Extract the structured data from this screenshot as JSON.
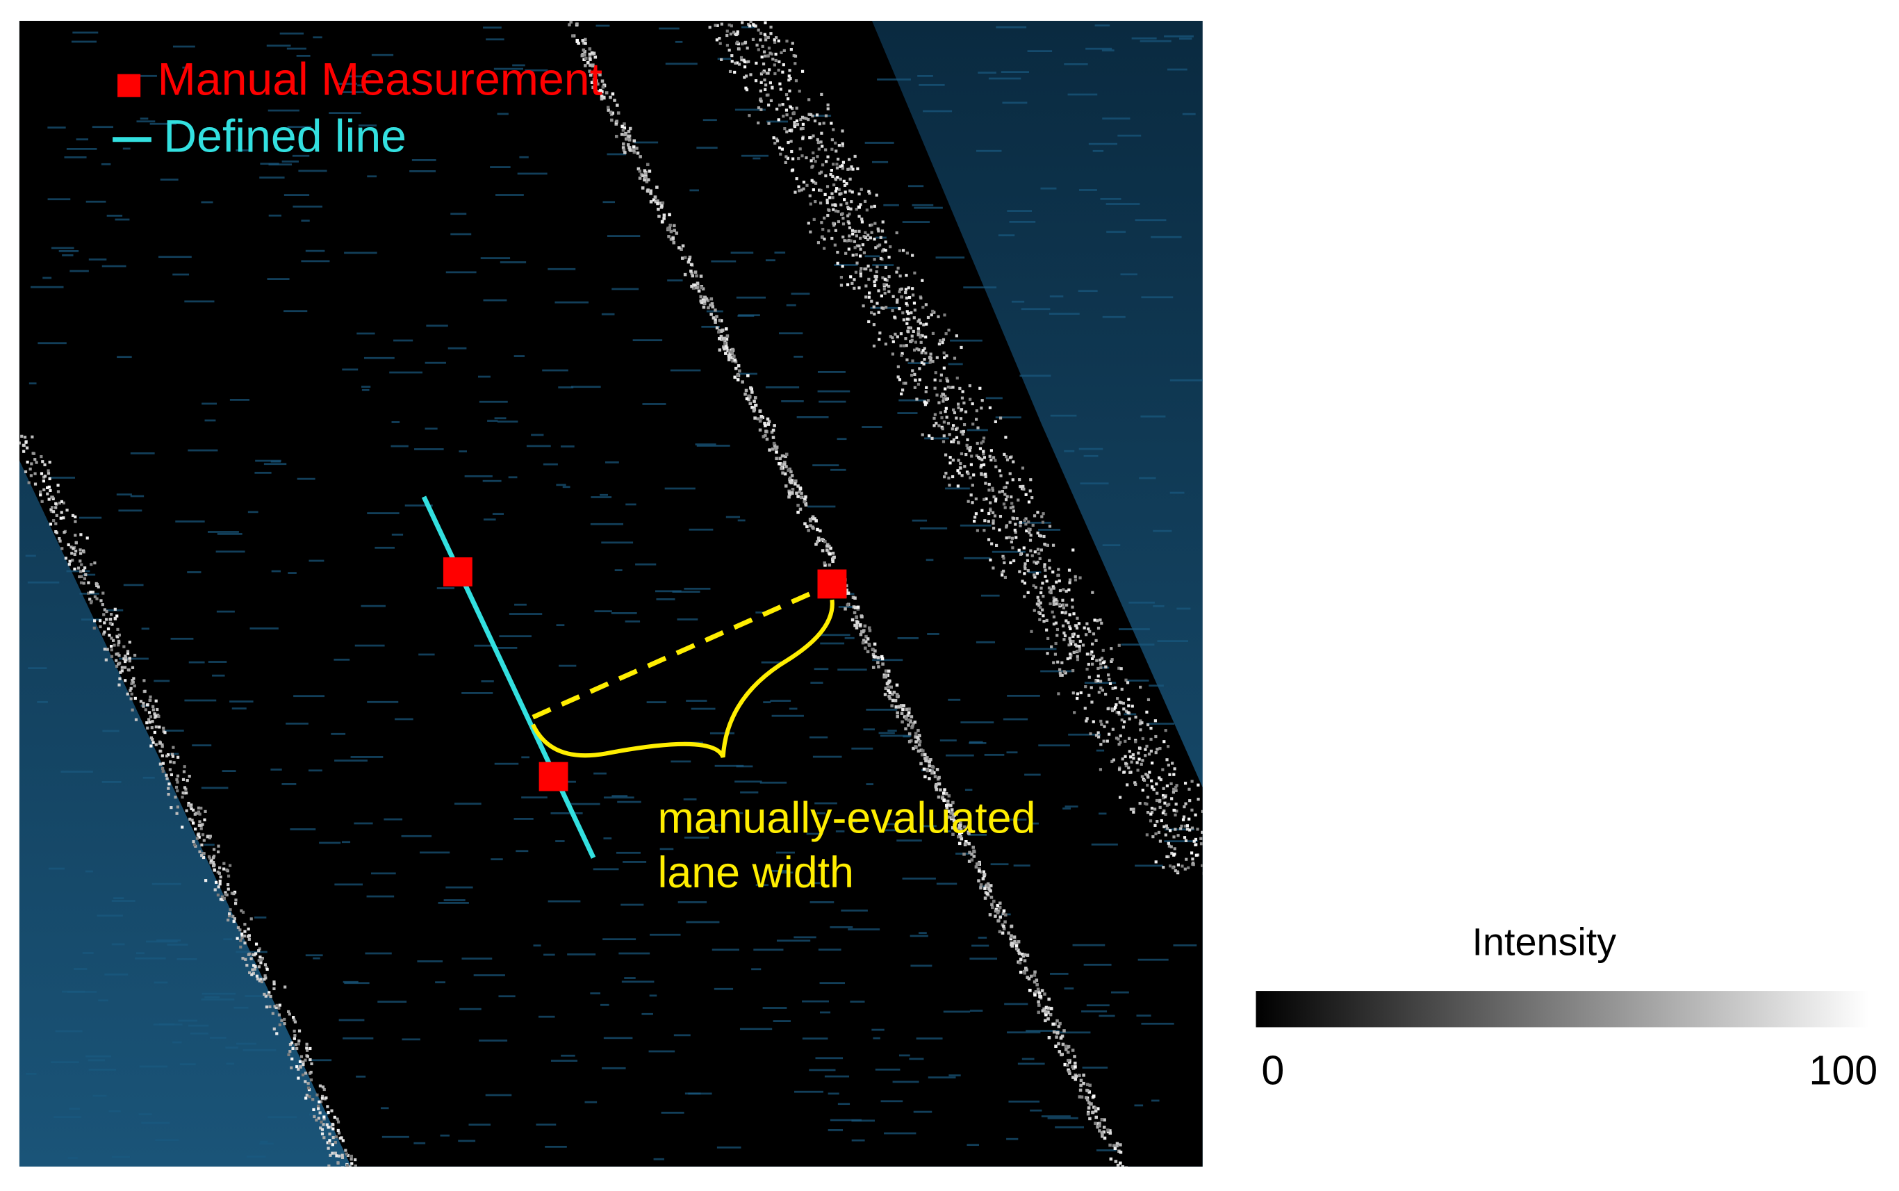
{
  "legend": {
    "items": [
      {
        "label": "Manual  Measurement",
        "color": "#ff0000"
      },
      {
        "label": "Defined line",
        "color": "#33e0e0"
      }
    ]
  },
  "annotation": {
    "lines": [
      "manually-evaluated",
      "lane width"
    ],
    "color": "#ffee00"
  },
  "colorbar": {
    "title": "Intensity",
    "ticks": [
      0,
      100
    ]
  }
}
